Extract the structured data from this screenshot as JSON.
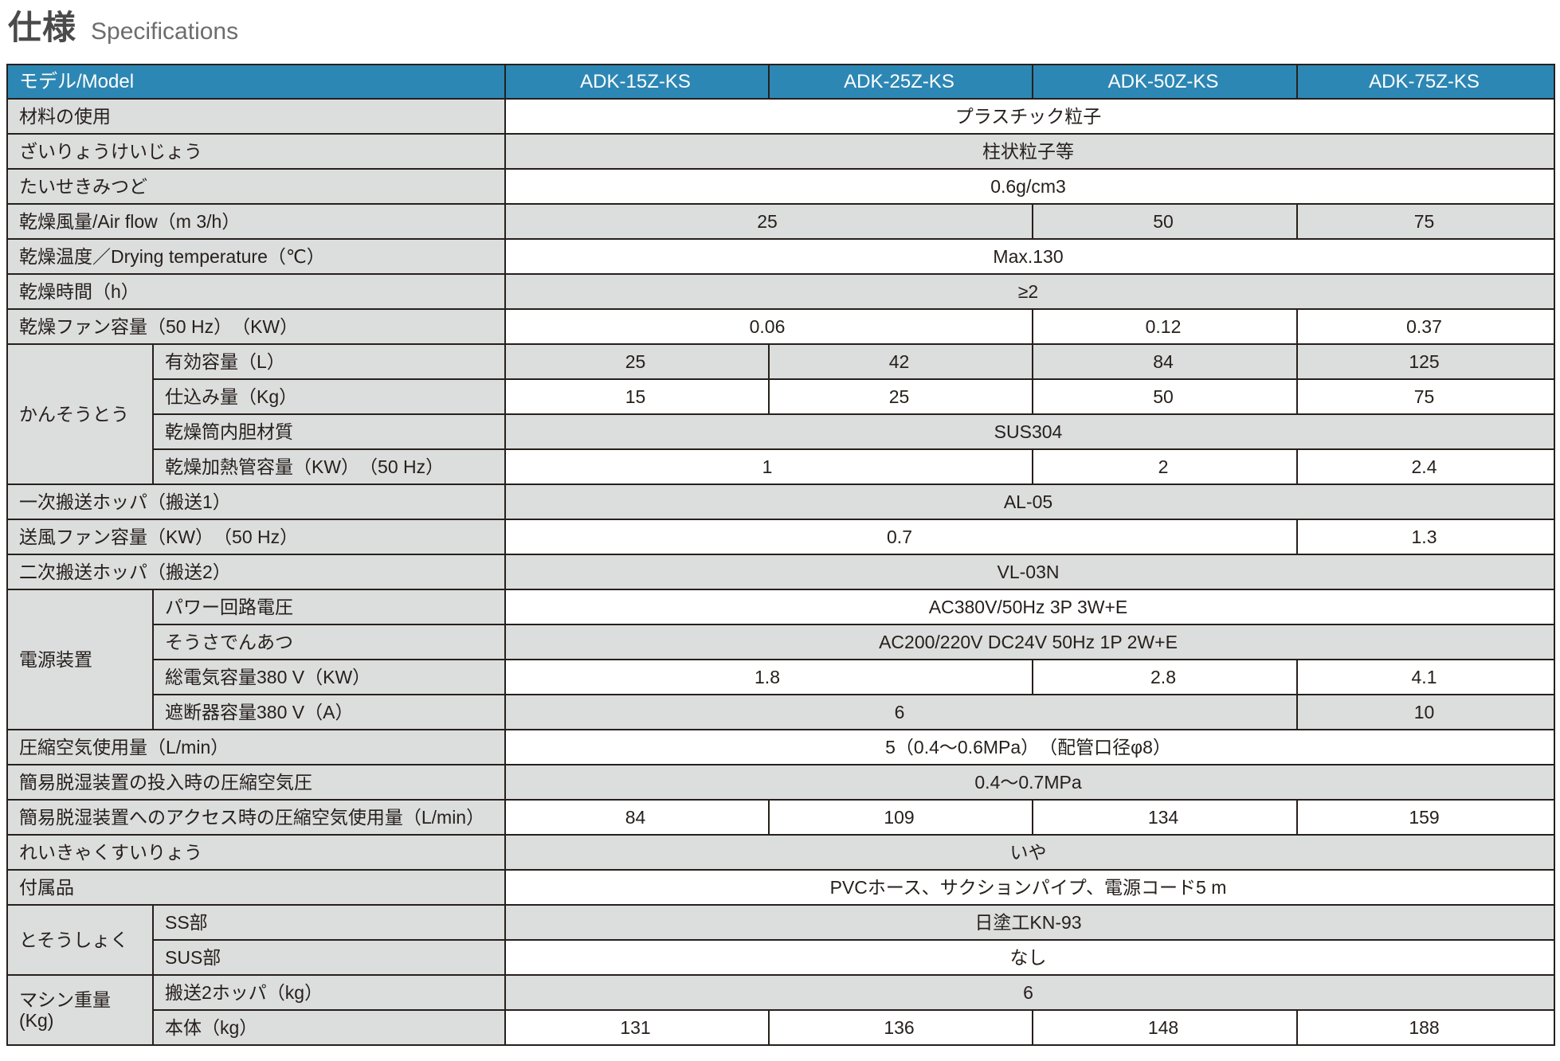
{
  "page": {
    "title_ja": "仕様",
    "title_en": "Specifications"
  },
  "colors": {
    "header_bg": "#2d87b4",
    "header_text": "#ffffff",
    "row_gray": "#dcdddd",
    "row_white": "#ffffff",
    "border": "#26201d",
    "title_ja": "#4a4a4a",
    "title_en": "#6d6d6d"
  },
  "table": {
    "header": {
      "model_label": "モデル/Model",
      "columns": [
        "ADK-15Z-KS",
        "ADK-25Z-KS",
        "ADK-50Z-KS",
        "ADK-75Z-KS"
      ]
    },
    "rows": [
      {
        "label": "材料の使用",
        "cells": [
          {
            "t": "プラスチック粒子",
            "span": 4
          }
        ],
        "shade": "white"
      },
      {
        "label": "ざいりょうけいじょう",
        "cells": [
          {
            "t": "柱状粒子等",
            "span": 4
          }
        ],
        "shade": "gray"
      },
      {
        "label": "たいせきみつど",
        "cells": [
          {
            "t": "0.6g/cm3",
            "span": 4
          }
        ],
        "shade": "white"
      },
      {
        "label": "乾燥風量/Air flow（m 3/h）",
        "cells": [
          {
            "t": "25",
            "span": 2
          },
          {
            "t": "50",
            "span": 1
          },
          {
            "t": "75",
            "span": 1
          }
        ],
        "shade": "gray"
      },
      {
        "label": "乾燥温度／Drying temperature（℃）",
        "cells": [
          {
            "t": "Max.130",
            "span": 4
          }
        ],
        "shade": "white"
      },
      {
        "label": "乾燥時間（h）",
        "cells": [
          {
            "t": "≥2",
            "span": 4
          }
        ],
        "shade": "gray"
      },
      {
        "label": "乾燥ファン容量（50 Hz）　（KW）",
        "cells": [
          {
            "t": "0.06",
            "span": 2
          },
          {
            "t": "0.12",
            "span": 1
          },
          {
            "t": "0.37",
            "span": 1
          }
        ],
        "shade": "white"
      },
      {
        "group": {
          "label": "かんそうとう",
          "rows": 4
        },
        "label": "有効容量（L）",
        "cells": [
          {
            "t": "25",
            "span": 1
          },
          {
            "t": "42",
            "span": 1
          },
          {
            "t": "84",
            "span": 1
          },
          {
            "t": "125",
            "span": 1
          }
        ],
        "shade": "gray"
      },
      {
        "sub": true,
        "label": "仕込み量（Kg）",
        "cells": [
          {
            "t": "15",
            "span": 1
          },
          {
            "t": "25",
            "span": 1
          },
          {
            "t": "50",
            "span": 1
          },
          {
            "t": "75",
            "span": 1
          }
        ],
        "shade": "white"
      },
      {
        "sub": true,
        "label": "乾燥筒内胆材質",
        "cells": [
          {
            "t": "SUS304",
            "span": 4
          }
        ],
        "shade": "gray"
      },
      {
        "sub": true,
        "label": "乾燥加熱管容量（KW）　（50 Hz）",
        "cells": [
          {
            "t": "1",
            "span": 2
          },
          {
            "t": "2",
            "span": 1
          },
          {
            "t": "2.4",
            "span": 1
          }
        ],
        "shade": "white"
      },
      {
        "label": "一次搬送ホッパ（搬送1）",
        "cells": [
          {
            "t": "AL-05",
            "span": 4
          }
        ],
        "shade": "gray"
      },
      {
        "label": "送風ファン容量（KW）　（50 Hz）",
        "cells": [
          {
            "t": "0.7",
            "span": 3
          },
          {
            "t": "1.3",
            "span": 1
          }
        ],
        "shade": "white"
      },
      {
        "label": "二次搬送ホッパ（搬送2）",
        "cells": [
          {
            "t": "VL-03N",
            "span": 4
          }
        ],
        "shade": "gray"
      },
      {
        "group": {
          "label": "電源装置",
          "rows": 4
        },
        "label": "パワー回路電圧",
        "cells": [
          {
            "t": "AC380V/50Hz 3P 3W+E",
            "span": 4
          }
        ],
        "shade": "white"
      },
      {
        "sub": true,
        "label": "そうさでんあつ",
        "cells": [
          {
            "t": "AC200/220V DC24V 50Hz 1P 2W+E",
            "span": 4
          }
        ],
        "shade": "gray"
      },
      {
        "sub": true,
        "label": "総電気容量380 V（KW）",
        "cells": [
          {
            "t": "1.8",
            "span": 2
          },
          {
            "t": "2.8",
            "span": 1
          },
          {
            "t": "4.1",
            "span": 1
          }
        ],
        "shade": "white"
      },
      {
        "sub": true,
        "label": "遮断器容量380 V（A）",
        "cells": [
          {
            "t": "6",
            "span": 3
          },
          {
            "t": "10",
            "span": 1
          }
        ],
        "shade": "gray"
      },
      {
        "label": "圧縮空気使用量（L/min）",
        "cells": [
          {
            "t": "5（0.4～0.6MPa）　（配管口径φ8）",
            "span": 4
          }
        ],
        "shade": "white"
      },
      {
        "label": "簡易脱湿装置の投入時の圧縮空気圧",
        "cells": [
          {
            "t": "0.4～0.7MPa",
            "span": 4
          }
        ],
        "shade": "gray"
      },
      {
        "label": "簡易脱湿装置へのアクセス時の圧縮空気使用量（L/min）",
        "cells": [
          {
            "t": "84",
            "span": 1
          },
          {
            "t": "109",
            "span": 1
          },
          {
            "t": "134",
            "span": 1
          },
          {
            "t": "159",
            "span": 1
          }
        ],
        "shade": "white"
      },
      {
        "label": "れいきゃくすいりょう",
        "cells": [
          {
            "t": "いや",
            "span": 4
          }
        ],
        "shade": "gray"
      },
      {
        "label": "付属品",
        "cells": [
          {
            "t": "PVCホース、サクションパイプ、電源コード5 m",
            "span": 4
          }
        ],
        "shade": "white"
      },
      {
        "group": {
          "label": "とそうしょく",
          "rows": 2
        },
        "label": "SS部",
        "cells": [
          {
            "t": "日塗工KN-93",
            "span": 4
          }
        ],
        "shade": "gray"
      },
      {
        "sub": true,
        "label": "SUS部",
        "cells": [
          {
            "t": "なし",
            "span": 4
          }
        ],
        "shade": "white"
      },
      {
        "group": {
          "label": "マシン重量\n(Kg)",
          "rows": 2
        },
        "label": "搬送2ホッパ（kg）",
        "cells": [
          {
            "t": "6",
            "span": 4
          }
        ],
        "shade": "gray"
      },
      {
        "sub": true,
        "label": "本体（kg）",
        "cells": [
          {
            "t": "131",
            "span": 1
          },
          {
            "t": "136",
            "span": 1
          },
          {
            "t": "148",
            "span": 1
          },
          {
            "t": "188",
            "span": 1
          }
        ],
        "shade": "white"
      }
    ]
  }
}
